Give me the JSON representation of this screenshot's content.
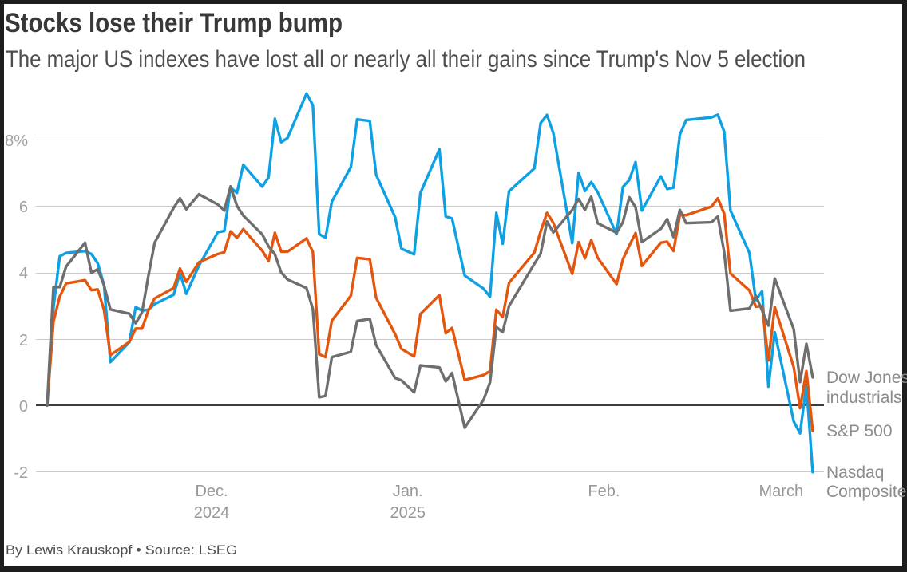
{
  "header": {
    "title": "Stocks lose their Trump bump",
    "subtitle": "The major US indexes have lost all or nearly all their gains since Trump's Nov 5 election"
  },
  "footer": {
    "byline": "By Lewis Krauskopf • Source: LSEG"
  },
  "chart_data": {
    "type": "line",
    "title": "Stocks lose their Trump bump",
    "subtitle": "The major US indexes have lost all or nearly all their gains since Trump's Nov 5 election",
    "source_note": "By Lewis Krauskopf • Source: LSEG",
    "grid": "horizontal",
    "legend_position": "right-of-line-ends",
    "ylim": [
      -2.6,
      9.6
    ],
    "y_ticks": [
      {
        "label": "8%",
        "value": 8
      },
      {
        "label": "6",
        "value": 6
      },
      {
        "label": "4",
        "value": 4
      },
      {
        "label": "2",
        "value": 2
      },
      {
        "label": "0",
        "value": 0
      },
      {
        "label": "-2",
        "value": -2
      }
    ],
    "x_ticks": [
      {
        "label": "Dec.",
        "sublabel": "2024",
        "date": "2024-12-01"
      },
      {
        "label": "Jan.",
        "sublabel": "2025",
        "date": "2025-01-01"
      },
      {
        "label": "Feb.",
        "sublabel": "",
        "date": "2025-02-01"
      },
      {
        "label": "March",
        "sublabel": "",
        "date": "2025-03-01"
      }
    ],
    "x_start_date": "2024-11-05",
    "y_unit": "%",
    "dates": [
      "2024-11-05",
      "2024-11-06",
      "2024-11-07",
      "2024-11-08",
      "2024-11-11",
      "2024-11-12",
      "2024-11-13",
      "2024-11-14",
      "2024-11-15",
      "2024-11-18",
      "2024-11-19",
      "2024-11-20",
      "2024-11-21",
      "2024-11-22",
      "2024-11-25",
      "2024-11-26",
      "2024-11-27",
      "2024-11-29",
      "2024-12-02",
      "2024-12-03",
      "2024-12-04",
      "2024-12-05",
      "2024-12-06",
      "2024-12-09",
      "2024-12-10",
      "2024-12-11",
      "2024-12-12",
      "2024-12-13",
      "2024-12-16",
      "2024-12-17",
      "2024-12-18",
      "2024-12-19",
      "2024-12-20",
      "2024-12-23",
      "2024-12-24",
      "2024-12-26",
      "2024-12-27",
      "2024-12-30",
      "2024-12-31",
      "2025-01-02",
      "2025-01-03",
      "2025-01-06",
      "2025-01-07",
      "2025-01-08",
      "2025-01-10",
      "2025-01-13",
      "2025-01-14",
      "2025-01-15",
      "2025-01-16",
      "2025-01-17",
      "2025-01-21",
      "2025-01-22",
      "2025-01-23",
      "2025-01-24",
      "2025-01-27",
      "2025-01-28",
      "2025-01-29",
      "2025-01-30",
      "2025-01-31",
      "2025-02-03",
      "2025-02-04",
      "2025-02-05",
      "2025-02-06",
      "2025-02-07",
      "2025-02-10",
      "2025-02-11",
      "2025-02-12",
      "2025-02-13",
      "2025-02-14",
      "2025-02-18",
      "2025-02-19",
      "2025-02-20",
      "2025-02-21",
      "2025-02-24",
      "2025-02-25",
      "2025-02-26",
      "2025-02-27",
      "2025-02-28",
      "2025-03-03",
      "2025-03-04",
      "2025-03-05",
      "2025-03-06"
    ],
    "series": [
      {
        "name": "Nasdaq Composite",
        "label_lines": [
          "Nasdaq",
          "Composite"
        ],
        "color": "#0da1e3",
        "values": [
          0,
          2.95,
          4.5,
          4.6,
          4.66,
          4.57,
          4.29,
          3.63,
          1.31,
          1.91,
          2.97,
          2.86,
          2.89,
          3.06,
          3.34,
          3.99,
          3.37,
          4.22,
          5.23,
          5.26,
          6.58,
          6.41,
          7.26,
          6.6,
          6.88,
          8.65,
          7.94,
          8.07,
          9.41,
          9.06,
          5.17,
          5.06,
          6.15,
          7.19,
          8.63,
          8.58,
          6.96,
          5.68,
          4.73,
          4.56,
          6.41,
          7.73,
          5.7,
          5.64,
          3.92,
          3.52,
          3.28,
          5.81,
          4.88,
          6.46,
          7.15,
          8.52,
          8.76,
          8.22,
          4.9,
          7.02,
          6.47,
          6.74,
          6.44,
          5.17,
          6.59,
          6.8,
          7.34,
          5.88,
          6.91,
          6.53,
          6.57,
          8.17,
          8.61,
          8.69,
          8.77,
          8.26,
          5.88,
          4.6,
          3.18,
          3.45,
          0.57,
          2.21,
          -0.48,
          -0.84,
          0.62,
          -2.01
        ]
      },
      {
        "name": "S&P 500",
        "label_lines": [
          "S&P 500"
        ],
        "color": "#e4560d",
        "values": [
          0,
          2.53,
          3.29,
          3.68,
          3.78,
          3.48,
          3.5,
          2.88,
          1.52,
          1.92,
          2.32,
          2.32,
          2.87,
          3.23,
          3.54,
          4.13,
          3.73,
          4.32,
          4.57,
          4.62,
          5.25,
          5.06,
          5.32,
          4.67,
          4.36,
          5.21,
          4.64,
          4.64,
          5.04,
          4.63,
          1.55,
          1.46,
          2.56,
          3.31,
          4.45,
          4.41,
          3.25,
          2.15,
          1.71,
          1.48,
          2.76,
          3.33,
          2.18,
          2.34,
          0.77,
          0.92,
          1.04,
          2.89,
          2.67,
          3.7,
          4.61,
          5.25,
          5.81,
          5.51,
          3.97,
          4.93,
          4.44,
          4.99,
          4.46,
          3.66,
          4.41,
          4.82,
          5.2,
          4.21,
          4.91,
          4.94,
          4.66,
          5.75,
          5.74,
          6.0,
          6.25,
          5.79,
          3.98,
          3.47,
          2.98,
          3.0,
          1.36,
          2.97,
          1.16,
          -0.08,
          1.04,
          -0.77
        ]
      },
      {
        "name": "Dow Jones industrials",
        "label_lines": [
          "Dow Jones",
          "industrials"
        ],
        "color": "#6e6e6e",
        "values": [
          0,
          3.57,
          3.57,
          4.19,
          4.91,
          4.0,
          4.11,
          3.62,
          2.9,
          2.77,
          2.48,
          2.81,
          3.9,
          4.91,
          5.96,
          6.25,
          5.92,
          6.37,
          6.06,
          5.88,
          6.61,
          6.02,
          5.73,
          5.16,
          4.8,
          4.56,
          4.01,
          3.8,
          3.54,
          2.91,
          0.25,
          0.29,
          1.46,
          1.62,
          2.55,
          2.61,
          1.82,
          0.83,
          0.76,
          0.4,
          1.21,
          1.15,
          0.73,
          0.98,
          -0.67,
          0.18,
          0.7,
          2.37,
          2.21,
          3.0,
          4.27,
          4.58,
          5.55,
          5.22,
          5.9,
          6.23,
          5.9,
          6.3,
          5.5,
          5.21,
          5.53,
          6.28,
          5.98,
          4.93,
          5.33,
          5.62,
          5.08,
          5.9,
          5.5,
          5.53,
          5.7,
          4.63,
          2.86,
          2.93,
          3.31,
          2.87,
          2.41,
          3.83,
          2.3,
          0.71,
          1.86,
          0.85
        ]
      }
    ],
    "styles": {
      "gridline_color": "#c9c9c9",
      "zeroline_color": "#3c3c3c",
      "background": "#ffffff",
      "frame_border_color": "#1d1d1d",
      "line_width": 3.4
    }
  }
}
